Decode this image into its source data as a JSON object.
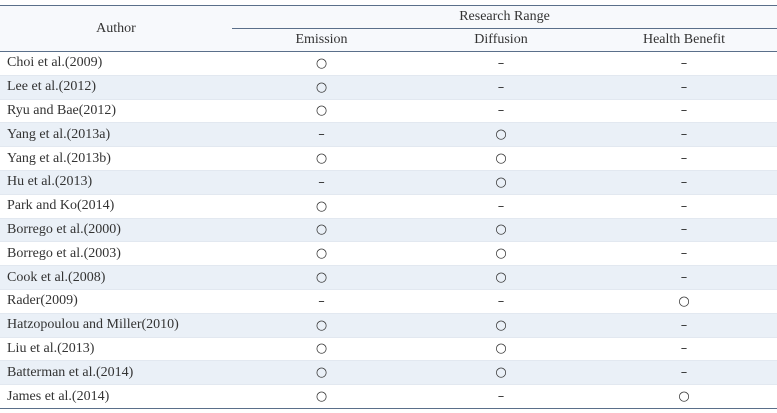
{
  "table": {
    "header": {
      "author": "Author",
      "group": "Research Range",
      "columns": [
        "Emission",
        "Diffusion",
        "Health Benefit"
      ]
    },
    "rows": [
      [
        "Choi et al.(2009)",
        "○",
        "–",
        "–"
      ],
      [
        "Lee et al.(2012)",
        "○",
        "–",
        "–"
      ],
      [
        "Ryu and Bae(2012)",
        "○",
        "–",
        "–"
      ],
      [
        "Yang et al.(2013a)",
        "–",
        "○",
        "–"
      ],
      [
        "Yang et al.(2013b)",
        "○",
        "○",
        "–"
      ],
      [
        "Hu et al.(2013)",
        "–",
        "○",
        "–"
      ],
      [
        "Park and Ko(2014)",
        "○",
        "–",
        "–"
      ],
      [
        "Borrego et al.(2000)",
        "○",
        "○",
        "–"
      ],
      [
        "Borrego et al.(2003)",
        "○",
        "○",
        "–"
      ],
      [
        "Cook et al.(2008)",
        "○",
        "○",
        "–"
      ],
      [
        "Rader(2009)",
        "–",
        "–",
        "○"
      ],
      [
        "Hatzopoulou and Miller(2010)",
        "○",
        "○",
        "–"
      ],
      [
        "Liu et al.(2013)",
        "○",
        "○",
        "–"
      ],
      [
        "Batterman et al.(2014)",
        "○",
        "○",
        "–"
      ],
      [
        "James et al.(2014)",
        "○",
        "–",
        "○"
      ]
    ]
  }
}
